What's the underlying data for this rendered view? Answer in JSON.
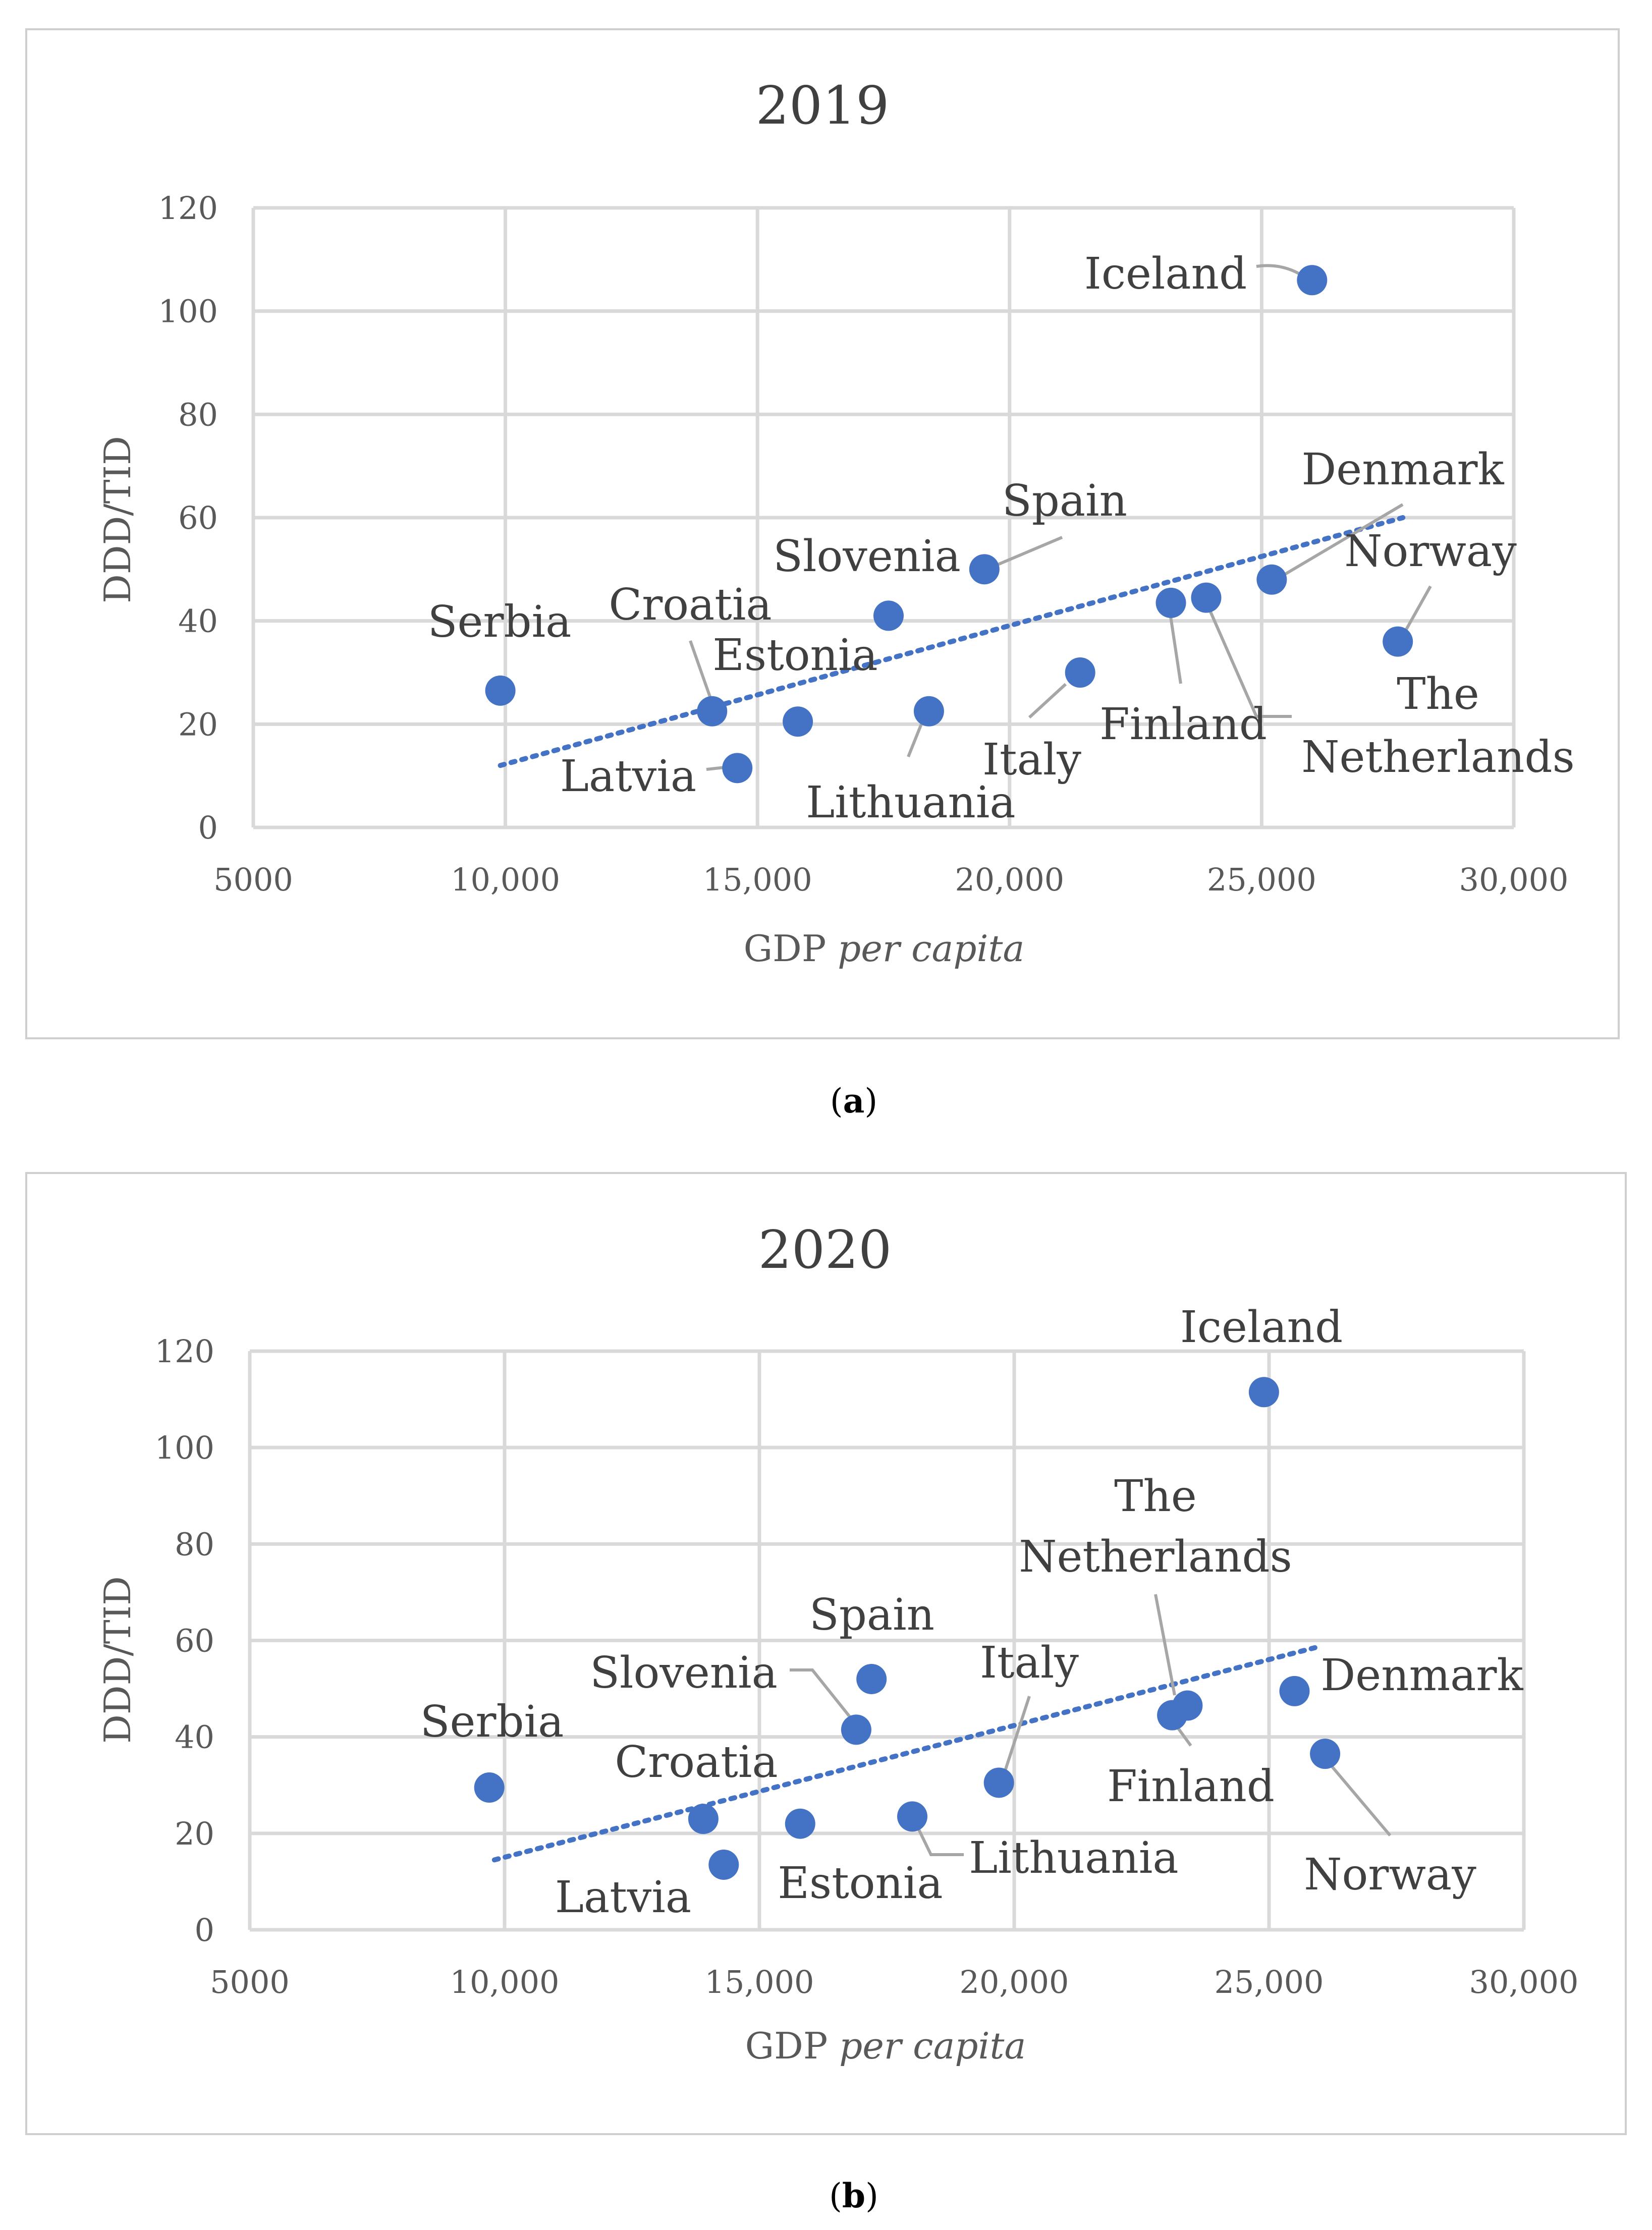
{
  "chart_data": [
    {
      "type": "scatter",
      "panel": "a",
      "title": "2019",
      "xlabel_prefix": "GDP ",
      "xlabel_italic": "per capita",
      "ylabel": "DDD/TID",
      "xlim": [
        5000,
        30000
      ],
      "ylim": [
        0,
        120
      ],
      "x_ticks": [
        "5000",
        "10,000",
        "15,000",
        "20,000",
        "25,000",
        "30,000"
      ],
      "y_ticks": [
        "0",
        "20",
        "40",
        "60",
        "80",
        "100",
        "120"
      ],
      "trendline": {
        "style": "dotted",
        "x": [
          9900,
          27800
        ],
        "y": [
          12,
          60
        ]
      },
      "points": [
        {
          "name": "Serbia",
          "x": 9900,
          "y": 26.5
        },
        {
          "name": "Croatia",
          "x": 14100,
          "y": 22.5
        },
        {
          "name": "Latvia",
          "x": 14600,
          "y": 11.5
        },
        {
          "name": "Estonia",
          "x": 15800,
          "y": 20.5
        },
        {
          "name": "Slovenia",
          "x": 17600,
          "y": 41
        },
        {
          "name": "Lithuania",
          "x": 18400,
          "y": 22.5
        },
        {
          "name": "Spain",
          "x": 19500,
          "y": 50
        },
        {
          "name": "Italy",
          "x": 21400,
          "y": 30
        },
        {
          "name": "Finland",
          "x": 23200,
          "y": 43.5
        },
        {
          "name": "The Netherlands",
          "x": 23900,
          "y": 44.5
        },
        {
          "name": "Denmark",
          "x": 25200,
          "y": 48
        },
        {
          "name": "Iceland",
          "x": 26000,
          "y": 106
        },
        {
          "name": "Norway",
          "x": 27700,
          "y": 36
        }
      ],
      "labels": [
        "Serbia",
        "Croatia",
        "Latvia",
        "Estonia",
        "Slovenia",
        "Lithuania",
        "Spain",
        "Italy",
        "Finland",
        "The",
        "Netherlands",
        "Denmark",
        "Iceland",
        "Norway"
      ]
    },
    {
      "type": "scatter",
      "panel": "b",
      "title": "2020",
      "xlabel_prefix": "GDP ",
      "xlabel_italic": "per capita",
      "ylabel": "DDD/TID",
      "xlim": [
        5000,
        30000
      ],
      "ylim": [
        0,
        120
      ],
      "x_ticks": [
        "5000",
        "10,000",
        "15,000",
        "20,000",
        "25,000",
        "30,000"
      ],
      "y_ticks": [
        "0",
        "20",
        "40",
        "60",
        "80",
        "100",
        "120"
      ],
      "trendline": {
        "style": "dotted",
        "x": [
          9800,
          25900
        ],
        "y": [
          14.5,
          58.5
        ]
      },
      "points": [
        {
          "name": "Serbia",
          "x": 9700,
          "y": 29.5
        },
        {
          "name": "Croatia",
          "x": 13900,
          "y": 23
        },
        {
          "name": "Latvia",
          "x": 14300,
          "y": 13.5
        },
        {
          "name": "Estonia",
          "x": 15800,
          "y": 22
        },
        {
          "name": "Slovenia",
          "x": 16900,
          "y": 41.5
        },
        {
          "name": "Spain",
          "x": 17200,
          "y": 52
        },
        {
          "name": "Lithuania",
          "x": 18000,
          "y": 23.5
        },
        {
          "name": "Italy",
          "x": 19700,
          "y": 30.5
        },
        {
          "name": "Finland",
          "x": 23100,
          "y": 44.5
        },
        {
          "name": "The Netherlands",
          "x": 23400,
          "y": 46.5
        },
        {
          "name": "Iceland",
          "x": 24900,
          "y": 111.5
        },
        {
          "name": "Denmark",
          "x": 25500,
          "y": 49.5
        },
        {
          "name": "Norway",
          "x": 26100,
          "y": 36.5
        }
      ],
      "labels": [
        "Iceland",
        "The",
        "Netherlands",
        "Spain",
        "Slovenia",
        "Italy",
        "Denmark",
        "Serbia",
        "Croatia",
        "Finland",
        "Lithuania",
        "Latvia",
        "Estonia",
        "Norway"
      ]
    }
  ],
  "captions": [
    "a",
    "b"
  ]
}
